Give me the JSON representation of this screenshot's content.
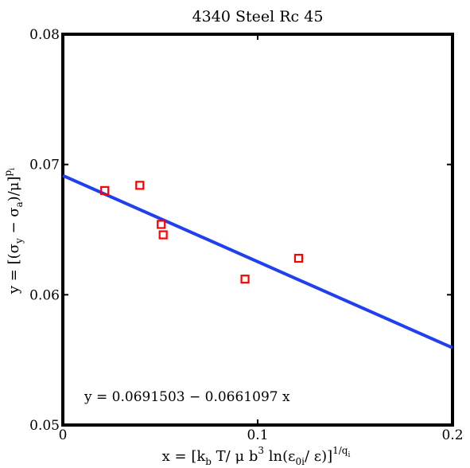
{
  "chart_data": {
    "type": "scatter",
    "title": "4340 Steel Rc 45",
    "xlabel": {
      "p1": "x = [k",
      "p1_sub": "b",
      "p2": " T/ μ b",
      "p2_sup": "3",
      "p3": " ln(ε",
      "p3_sub": "0i",
      "p4": "/ ε)]",
      "p4_sup": "1/q",
      "p4_supsub": "i"
    },
    "ylabel": {
      "p1": "y = [(σ",
      "p1_sub": "y",
      "p2": " − σ",
      "p2_sub": "a",
      "p3": ")/μ]",
      "p3_sup": "p",
      "p3_supsub": "i"
    },
    "xlim": [
      0,
      0.2
    ],
    "ylim": [
      0.05,
      0.08
    ],
    "xticks": [
      {
        "value": 0,
        "label": "0"
      },
      {
        "value": 0.1,
        "label": "0.1"
      },
      {
        "value": 0.2,
        "label": "0.2"
      }
    ],
    "yticks": [
      {
        "value": 0.05,
        "label": "0.05"
      },
      {
        "value": 0.06,
        "label": "0.06"
      },
      {
        "value": 0.07,
        "label": "0.07"
      },
      {
        "value": 0.08,
        "label": "0.08"
      }
    ],
    "grid": false,
    "points": [
      {
        "x": 0.0215,
        "y": 0.068
      },
      {
        "x": 0.0395,
        "y": 0.0684
      },
      {
        "x": 0.0505,
        "y": 0.0654
      },
      {
        "x": 0.0515,
        "y": 0.0646
      },
      {
        "x": 0.0935,
        "y": 0.0612
      },
      {
        "x": 0.121,
        "y": 0.0628
      }
    ],
    "fit": {
      "intercept": 0.0691503,
      "slope": -0.0661097,
      "equation_label": "y = 0.0691503 − 0.0661097 x"
    },
    "colors": {
      "points": "#ff0000",
      "fit_line": "#1f3ff0",
      "axes": "#000000"
    }
  }
}
